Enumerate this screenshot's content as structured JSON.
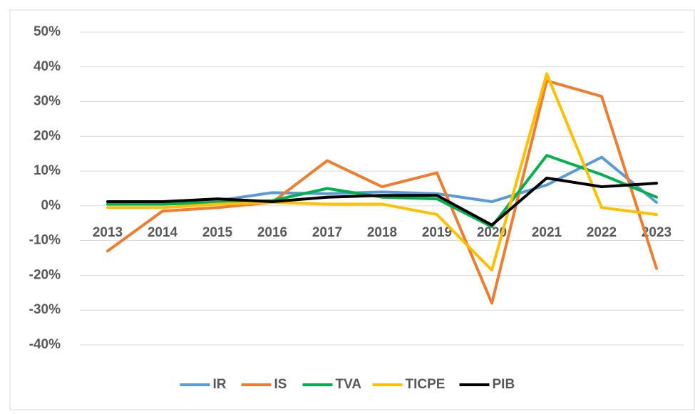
{
  "chart_data": {
    "type": "line",
    "categories": [
      "2013",
      "2014",
      "2015",
      "2016",
      "2017",
      "2018",
      "2019",
      "2020",
      "2021",
      "2022",
      "2023"
    ],
    "series": [
      {
        "name": "IR",
        "color": "#5b9bd5",
        "values": [
          0.5,
          0.5,
          1.5,
          3.8,
          3.5,
          4,
          3.5,
          1.2,
          6,
          14,
          1
        ]
      },
      {
        "name": "IS",
        "color": "#ed7d31",
        "values": [
          -13,
          -1.5,
          -0.5,
          1,
          13,
          5.5,
          9.5,
          -28,
          36,
          31.5,
          -18
        ]
      },
      {
        "name": "TVA",
        "color": "#00b050",
        "values": [
          0.5,
          0.5,
          1,
          1.5,
          5,
          2.5,
          2,
          -6,
          14.5,
          9,
          2.5
        ]
      },
      {
        "name": "TICPE",
        "color": "#ffc000",
        "values": [
          -0.5,
          -0.5,
          0.5,
          1,
          0.5,
          0.5,
          -2.5,
          -18.5,
          38,
          -0.5,
          -2.5
        ]
      },
      {
        "name": "PIB",
        "color": "#000000",
        "values": [
          1.2,
          1.2,
          2,
          1.2,
          2.5,
          3,
          3,
          -5.5,
          8,
          5.5,
          6.5
        ]
      }
    ],
    "ylim": [
      -40,
      50
    ],
    "yticks": [
      {
        "value": -40,
        "label": "-40%"
      },
      {
        "value": -30,
        "label": "-30%"
      },
      {
        "value": -20,
        "label": "-20%"
      },
      {
        "value": -10,
        "label": "-10%"
      },
      {
        "value": 0,
        "label": "0%"
      },
      {
        "value": 10,
        "label": "10%"
      },
      {
        "value": 20,
        "label": "20%"
      },
      {
        "value": 30,
        "label": "30%"
      },
      {
        "value": 40,
        "label": "40%"
      },
      {
        "value": 50,
        "label": "50%"
      }
    ],
    "grid": true,
    "legend": "bottom"
  }
}
